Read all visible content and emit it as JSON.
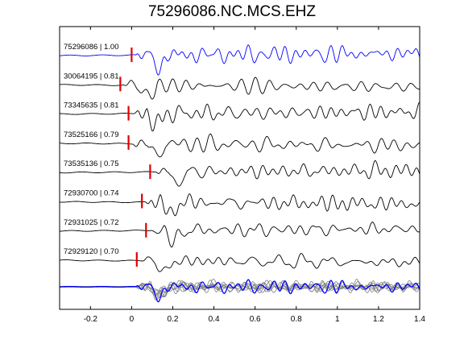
{
  "chart_data": {
    "type": "line",
    "title": "75296086.NC.MCS.EHZ",
    "xlabel": "",
    "ylabel": "",
    "xlim": [
      -0.35,
      1.4
    ],
    "xticks": [
      -0.2,
      0,
      0.2,
      0.4,
      0.6,
      0.8,
      1,
      1.2,
      1.4
    ],
    "xtick_labels": [
      "-0.2",
      "0",
      "0.2",
      "0.4",
      "0.6",
      "0.8",
      "1",
      "1.2",
      "1.4"
    ],
    "grid": false,
    "colors": {
      "reference": "#0000ff",
      "trace": "#000000",
      "overlay": "#808080",
      "pick": "#e00000"
    },
    "series": [
      {
        "label": "75296086 | 1.00",
        "event_id": "75296086",
        "correlation": 1.0,
        "pick_time": 0.0,
        "color": "#0000ff",
        "seed": 1
      },
      {
        "label": "30064195 | 0.81",
        "event_id": "30064195",
        "correlation": 0.81,
        "pick_time": -0.055,
        "color": "#000000",
        "seed": 2
      },
      {
        "label": "73345635 | 0.81",
        "event_id": "73345635",
        "correlation": 0.81,
        "pick_time": -0.015,
        "color": "#000000",
        "seed": 3
      },
      {
        "label": "73525166 | 0.79",
        "event_id": "73525166",
        "correlation": 0.79,
        "pick_time": -0.015,
        "color": "#000000",
        "seed": 4
      },
      {
        "label": "73535136 | 0.75",
        "event_id": "73535136",
        "correlation": 0.75,
        "pick_time": 0.09,
        "color": "#000000",
        "seed": 5
      },
      {
        "label": "72930700 | 0.74",
        "event_id": "72930700",
        "correlation": 0.74,
        "pick_time": 0.05,
        "color": "#000000",
        "seed": 6
      },
      {
        "label": "72931025 | 0.72",
        "event_id": "72931025",
        "correlation": 0.72,
        "pick_time": 0.07,
        "color": "#000000",
        "seed": 7
      },
      {
        "label": "72929120 | 0.70",
        "event_id": "72929120",
        "correlation": 0.7,
        "pick_time": 0.025,
        "color": "#000000",
        "seed": 8
      }
    ],
    "stack": {
      "description": "overlay of all aligned traces",
      "reference_color": "#0000ff",
      "other_color": "#808080"
    }
  }
}
